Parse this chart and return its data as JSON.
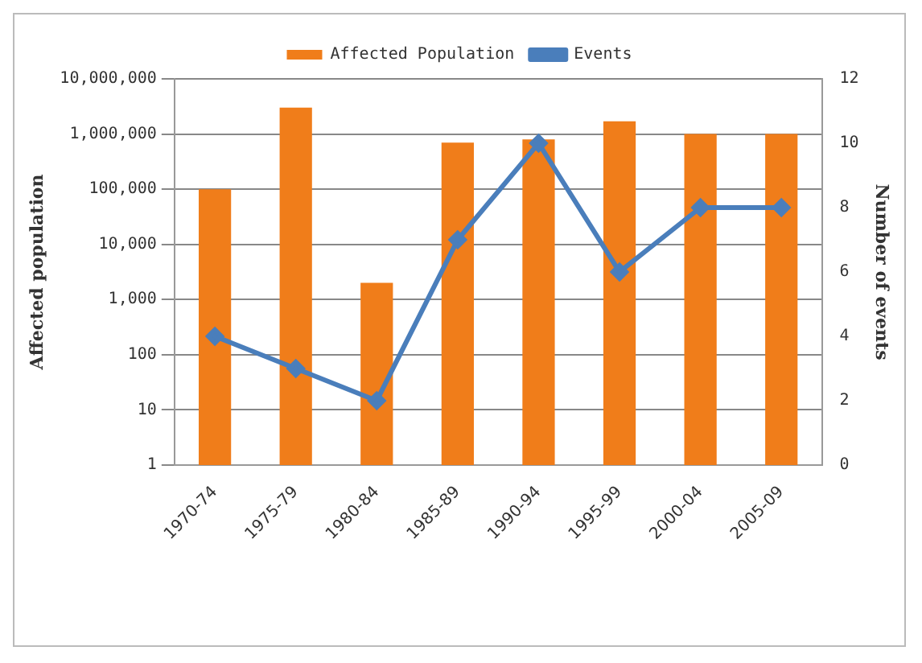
{
  "chart_data": {
    "type": "bar",
    "categories": [
      "1970-74",
      "1975-79",
      "1980-84",
      "1985-89",
      "1990-94",
      "1995-99",
      "2000-04",
      "2005-09"
    ],
    "series": [
      {
        "name": "Affected Population",
        "color": "#f07d1a",
        "values": [
          100000,
          3000000,
          2000,
          700000,
          800000,
          1700000,
          1000000,
          1000000
        ]
      },
      {
        "name": "Events",
        "type": "line",
        "axis": "y2",
        "color": "#4a7ebb",
        "marker": "diamond",
        "values": [
          4,
          3,
          2,
          7,
          10,
          6,
          8,
          8
        ]
      }
    ],
    "ylabel": "Affected population",
    "y2label": "Number of events",
    "log": "y",
    "ylim": [
      1,
      10000000
    ],
    "yticks": [
      1,
      10,
      100,
      {
        "value": 1000,
        "label": "1,000"
      },
      {
        "value": 10000,
        "label": "10,000"
      },
      {
        "value": 100000,
        "label": "100,000"
      },
      {
        "value": 1000000,
        "label": "1,000,000"
      },
      {
        "value": 10000000,
        "label": "10,000,000"
      }
    ],
    "y2lim": [
      0,
      12
    ],
    "y2ticks": [
      0,
      2,
      4,
      6,
      8,
      10,
      12
    ],
    "grid": "y",
    "legend": "top"
  }
}
